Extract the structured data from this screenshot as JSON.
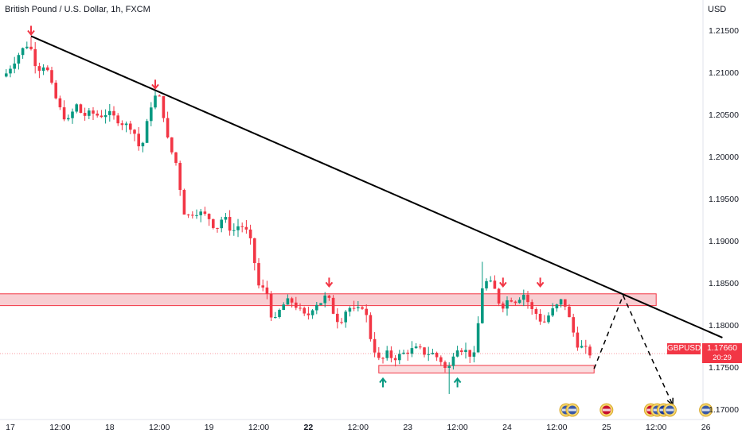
{
  "header": {
    "title": "British Pound / U.S. Dollar, 1h, FXCM",
    "currency": "USD"
  },
  "badge": {
    "symbol": "GBPUSD",
    "price": "1.17660",
    "countdown": "20:29"
  },
  "colors": {
    "up": "#089981",
    "down": "#f23645",
    "zone_fill": "#f7c6ca",
    "zone_stroke": "#f23645",
    "trendline": "#000000"
  },
  "chart_data": {
    "type": "candlestick",
    "title": "British Pound / U.S. Dollar, 1h, FXCM",
    "ylim": [
      1.168,
      1.2195
    ],
    "y_ticks": [
      {
        "value": 1.215,
        "label": "1.21500"
      },
      {
        "value": 1.21,
        "label": "1.21000"
      },
      {
        "value": 1.205,
        "label": "1.20500"
      },
      {
        "value": 1.2,
        "label": "1.20000"
      },
      {
        "value": 1.195,
        "label": "1.19500"
      },
      {
        "value": 1.19,
        "label": "1.19000"
      },
      {
        "value": 1.185,
        "label": "1.18500"
      },
      {
        "value": 1.18,
        "label": "1.18000"
      },
      {
        "value": 1.175,
        "label": "1.17500"
      },
      {
        "value": 1.17,
        "label": "1.17000"
      }
    ],
    "x_ticks": [
      {
        "t": 0,
        "label": "17"
      },
      {
        "t": 12,
        "label": "12:00"
      },
      {
        "t": 24,
        "label": "18"
      },
      {
        "t": 36,
        "label": "12:00"
      },
      {
        "t": 48,
        "label": "19"
      },
      {
        "t": 60,
        "label": "12:00"
      },
      {
        "t": 72,
        "label": "22",
        "bold": true
      },
      {
        "t": 84,
        "label": "12:00"
      },
      {
        "t": 96,
        "label": "23"
      },
      {
        "t": 108,
        "label": "12:00"
      },
      {
        "t": 120,
        "label": "24"
      },
      {
        "t": 132,
        "label": "12:00"
      },
      {
        "t": 144,
        "label": "25"
      },
      {
        "t": 156,
        "label": "12:00"
      },
      {
        "t": 168,
        "label": "26"
      }
    ],
    "waypoints": [
      [
        -1,
        1.2095
      ],
      [
        3,
        1.2125
      ],
      [
        5,
        1.2135
      ],
      [
        7,
        1.2103
      ],
      [
        9,
        1.211
      ],
      [
        11,
        1.2075
      ],
      [
        13,
        1.205
      ],
      [
        15,
        1.204
      ],
      [
        16,
        1.2065
      ],
      [
        18,
        1.2048
      ],
      [
        20,
        1.2052
      ],
      [
        22,
        1.2048
      ],
      [
        24,
        1.2052
      ],
      [
        26,
        1.2045
      ],
      [
        28,
        1.2038
      ],
      [
        30,
        1.2035
      ],
      [
        32,
        1.2005
      ],
      [
        33,
        1.2028
      ],
      [
        35,
        1.2072
      ],
      [
        37,
        1.2068
      ],
      [
        38,
        1.203
      ],
      [
        39,
        1.201
      ],
      [
        40,
        1.2
      ],
      [
        41,
        1.1985
      ],
      [
        42,
        1.194
      ],
      [
        43,
        1.1928
      ],
      [
        45,
        1.1935
      ],
      [
        47,
        1.1932
      ],
      [
        49,
        1.1925
      ],
      [
        50,
        1.1912
      ],
      [
        52,
        1.193
      ],
      [
        54,
        1.191
      ],
      [
        56,
        1.192
      ],
      [
        58,
        1.1908
      ],
      [
        59,
        1.189
      ],
      [
        60,
        1.1858
      ],
      [
        61,
        1.1835
      ],
      [
        62,
        1.185
      ],
      [
        63,
        1.1825
      ],
      [
        64,
        1.18
      ],
      [
        66,
        1.1822
      ],
      [
        68,
        1.183
      ],
      [
        70,
        1.182
      ],
      [
        72,
        1.1808
      ],
      [
        74,
        1.1825
      ],
      [
        76,
        1.1828
      ],
      [
        77,
        1.1838
      ],
      [
        78,
        1.182
      ],
      [
        80,
        1.1802
      ],
      [
        82,
        1.1822
      ],
      [
        84,
        1.1815
      ],
      [
        85,
        1.182
      ],
      [
        86,
        1.1825
      ],
      [
        87,
        1.1795
      ],
      [
        88,
        1.1775
      ],
      [
        89,
        1.1765
      ],
      [
        90,
        1.1752
      ],
      [
        91,
        1.1768
      ],
      [
        93,
        1.176
      ],
      [
        95,
        1.1765
      ],
      [
        97,
        1.177
      ],
      [
        99,
        1.1772
      ],
      [
        101,
        1.1765
      ],
      [
        102,
        1.1768
      ],
      [
        104,
        1.176
      ],
      [
        105,
        1.1755
      ],
      [
        106,
        1.1742
      ],
      [
        107,
        1.1758
      ],
      [
        108,
        1.1775
      ],
      [
        110,
        1.177
      ],
      [
        111,
        1.1768
      ],
      [
        112,
        1.1762
      ],
      [
        113,
        1.1765
      ],
      [
        114,
        1.1838
      ],
      [
        115,
        1.1852
      ],
      [
        117,
        1.1848
      ],
      [
        118,
        1.1835
      ],
      [
        119,
        1.182
      ],
      [
        121,
        1.1832
      ],
      [
        123,
        1.1828
      ],
      [
        124,
        1.1838
      ],
      [
        125,
        1.1835
      ],
      [
        126,
        1.182
      ],
      [
        127,
        1.1815
      ],
      [
        128,
        1.1812
      ],
      [
        129,
        1.18
      ],
      [
        131,
        1.1815
      ],
      [
        133,
        1.1825
      ],
      [
        134,
        1.1832
      ],
      [
        135,
        1.1815
      ],
      [
        136,
        1.18
      ],
      [
        137,
        1.1782
      ],
      [
        138,
        1.1772
      ],
      [
        139,
        1.1775
      ],
      [
        140,
        1.1766
      ]
    ],
    "extremes": [
      {
        "t": 5,
        "high": 1.2142
      },
      {
        "t": 35,
        "high": 1.2078
      },
      {
        "t": 106,
        "low": 1.1718
      },
      {
        "t": 114,
        "high": 1.1875
      },
      {
        "t": 124,
        "high": 1.1842
      }
    ],
    "resistance_zone": {
      "y0": 1.1823,
      "y1": 1.1837,
      "t0": -4,
      "t1": 156
    },
    "support_zone": {
      "y0": 1.1743,
      "y1": 1.1752,
      "t0": 89,
      "t1": 141
    },
    "trendline": {
      "t0": 5,
      "y0": 1.2143,
      "t1": 172,
      "y1": 1.1785
    },
    "projection": [
      [
        141,
        1.1748
      ],
      [
        148,
        1.1835
      ],
      [
        160,
        1.1705
      ]
    ],
    "down_arrows": [
      {
        "t": 5,
        "y": 1.2142
      },
      {
        "t": 35,
        "y": 1.2078
      },
      {
        "t": 77,
        "y": 1.1843
      },
      {
        "t": 119,
        "y": 1.1843
      },
      {
        "t": 128,
        "y": 1.1843
      }
    ],
    "up_arrows": [
      {
        "t": 90,
        "y": 1.1742
      },
      {
        "t": 108,
        "y": 1.1742
      }
    ],
    "event_icons": [
      {
        "t": 135,
        "flags": [
          "US",
          "US"
        ]
      },
      {
        "t": 144,
        "flags": [
          "GB"
        ]
      },
      {
        "t": 157,
        "flags": [
          "GB",
          "US",
          "EU",
          "US"
        ]
      },
      {
        "t": 168,
        "flags": [
          "US"
        ]
      }
    ],
    "last_price": 1.1766
  }
}
